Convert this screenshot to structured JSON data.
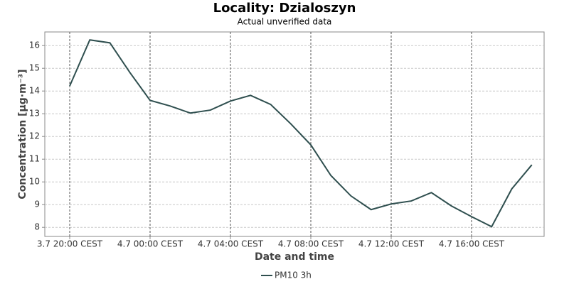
{
  "chart_data": {
    "type": "line",
    "title": "Locality: Dzialoszyn",
    "subtitle": "Actual unverified data",
    "x_label": "Date and time",
    "y_label": "Concentration [µg·m⁻³]",
    "categories": [
      "3.7 20:00 CEST",
      null,
      null,
      null,
      "4.7 00:00 CEST",
      null,
      null,
      null,
      "4.7 04:00 CEST",
      null,
      null,
      null,
      "4.7 08:00 CEST",
      null,
      null,
      null,
      "4.7 12:00 CEST",
      null,
      null,
      null,
      "4.7 16:00 CEST",
      null,
      null,
      null
    ],
    "series": [
      {
        "name": "PM10 3h",
        "color": "#2f4f4f",
        "values": [
          14.22,
          16.25,
          16.12,
          14.81,
          13.59,
          13.34,
          13.03,
          13.16,
          13.56,
          13.81,
          13.41,
          12.56,
          11.63,
          10.28,
          9.38,
          8.78,
          9.03,
          9.16,
          9.53,
          8.94,
          8.47,
          8.03,
          9.69,
          10.75
        ]
      }
    ],
    "ylim": [
      7.6,
      16.6
    ],
    "yticks": [
      8,
      9,
      10,
      11,
      12,
      13,
      14,
      15,
      16
    ],
    "grid": true,
    "legend": "bottom"
  }
}
